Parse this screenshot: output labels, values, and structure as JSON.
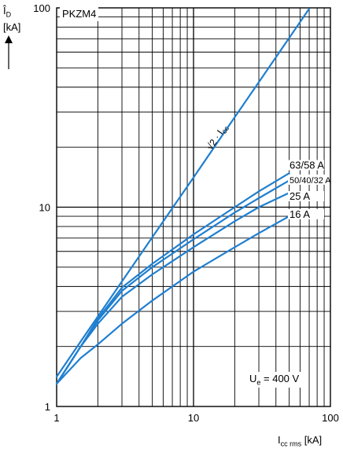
{
  "chart_data": {
    "type": "line",
    "title": "",
    "xscale": "log",
    "yscale": "log",
    "xlim": [
      1,
      100
    ],
    "ylim": [
      1,
      100
    ],
    "grid": true,
    "ylabel": {
      "symbol": "Î",
      "sub": "D",
      "unit": "[kA]"
    },
    "xlabel": {
      "symbol": "I",
      "sub": "cc rms",
      "unit": "[kA]"
    },
    "xticks": [
      {
        "value": 1,
        "label": "1"
      },
      {
        "value": 10,
        "label": "10"
      },
      {
        "value": 100,
        "label": "100"
      }
    ],
    "yticks": [
      {
        "value": 1,
        "label": "1"
      },
      {
        "value": 10,
        "label": "10"
      },
      {
        "value": 100,
        "label": "100"
      }
    ],
    "device_label": "PKZM4",
    "voltage_label": {
      "prefix": "U",
      "sub": "e",
      "suffix": " = 400 V"
    },
    "line_color": "#1f7fd0",
    "series": [
      {
        "name": "√2 · Icc",
        "x": [
          1,
          1.5,
          2,
          3,
          5,
          10,
          20,
          30,
          50,
          70
        ],
        "y": [
          1.41,
          2.12,
          2.83,
          4.24,
          7.07,
          14.1,
          28.3,
          42.4,
          70.7,
          99
        ]
      },
      {
        "name": "63/58 A",
        "x": [
          1,
          1.5,
          2,
          3,
          5,
          10,
          20,
          30,
          50
        ],
        "y": [
          1.3,
          2.0,
          2.75,
          3.95,
          5.2,
          7.3,
          10.0,
          12.0,
          14.8
        ]
      },
      {
        "name": "50/40/32 A",
        "x": [
          1,
          1.5,
          2,
          3,
          5,
          10,
          20,
          30,
          50
        ],
        "y": [
          1.3,
          2.0,
          2.7,
          3.8,
          5.0,
          6.9,
          9.4,
          11.1,
          13.6
        ]
      },
      {
        "name": "25 A",
        "x": [
          1,
          1.5,
          2,
          3,
          5,
          10,
          20,
          30,
          50
        ],
        "y": [
          1.3,
          2.0,
          2.6,
          3.55,
          4.6,
          6.3,
          8.5,
          10.0,
          11.8
        ]
      },
      {
        "name": "16 A",
        "x": [
          1,
          1.5,
          2,
          3,
          5,
          10,
          20,
          30,
          50
        ],
        "y": [
          1.3,
          1.75,
          2.05,
          2.6,
          3.4,
          4.75,
          6.3,
          7.4,
          9.0
        ]
      }
    ],
    "curve_labels": [
      {
        "text": "√2 · I",
        "sub": "cc"
      },
      {
        "text": "63/58 A"
      },
      {
        "text": "50/40/32 A"
      },
      {
        "text": "25 A"
      },
      {
        "text": "16 A"
      }
    ]
  }
}
